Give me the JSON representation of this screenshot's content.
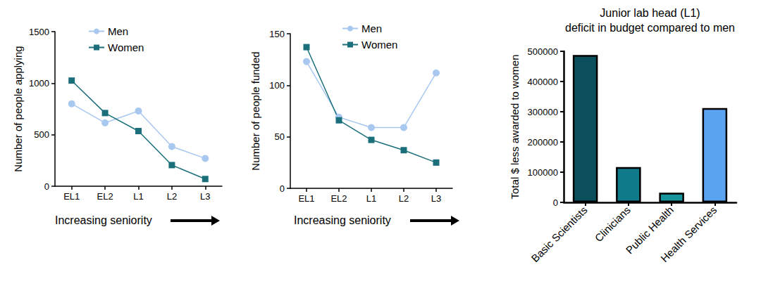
{
  "chart_data": [
    {
      "type": "line",
      "x_label": "Increasing seniority",
      "y_label": "Number of people applying",
      "categories": [
        "EL1",
        "EL2",
        "L1",
        "L2",
        "L3"
      ],
      "series": [
        {
          "name": "Men",
          "color": "#a9c8f0",
          "marker": "circle",
          "values": [
            800,
            615,
            730,
            385,
            270
          ]
        },
        {
          "name": "Women",
          "color": "#1a6f7a",
          "marker": "square",
          "values": [
            1025,
            710,
            535,
            205,
            70
          ]
        }
      ],
      "ylim": [
        0,
        1500
      ],
      "yticks": [
        0,
        500,
        1000,
        1500
      ],
      "grid": false,
      "legend": "upper left"
    },
    {
      "type": "line",
      "x_label": "Increasing seniority",
      "y_label": "Number of people funded",
      "categories": [
        "EL1",
        "EL2",
        "L1",
        "L2",
        "L3"
      ],
      "series": [
        {
          "name": "Men",
          "color": "#a9c8f0",
          "marker": "circle",
          "values": [
            123,
            69,
            59,
            59,
            112
          ]
        },
        {
          "name": "Women",
          "color": "#1a6f7a",
          "marker": "square",
          "values": [
            137,
            66,
            47,
            37,
            25
          ]
        }
      ],
      "ylim": [
        0,
        150
      ],
      "yticks": [
        0,
        50,
        100,
        150
      ],
      "grid": false,
      "legend": "upper left"
    },
    {
      "type": "bar",
      "title": "Junior lab head (L1)\ndeficit in budget compared to men",
      "y_label": "Total $ less awarded to women",
      "categories": [
        "Basic Scientists",
        "Clinicians",
        "Public Health",
        "Health Services"
      ],
      "values": [
        488000,
        117000,
        32000,
        312000
      ],
      "colors": [
        "#0b4f5c",
        "#0e7a8a",
        "#17959c",
        "#5aa3f0"
      ],
      "ylim": [
        0,
        500000
      ],
      "yticks": [
        0,
        100000,
        200000,
        300000,
        400000,
        500000
      ],
      "grid": false
    }
  ]
}
